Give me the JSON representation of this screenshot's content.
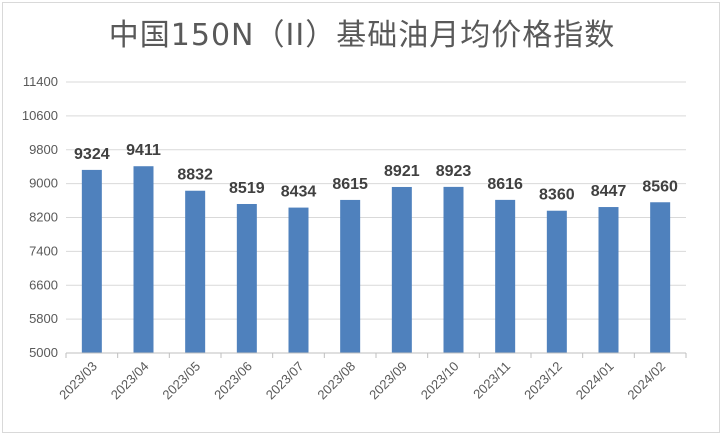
{
  "chart_data": {
    "type": "bar",
    "title": "中国150N（II）基础油月均价格指数",
    "categories": [
      "2023/03",
      "2023/04",
      "2023/05",
      "2023/06",
      "2023/07",
      "2023/08",
      "2023/09",
      "2023/10",
      "2023/11",
      "2023/12",
      "2024/01",
      "2024/02"
    ],
    "values": [
      9324,
      9411,
      8832,
      8519,
      8434,
      8615,
      8921,
      8923,
      8616,
      8360,
      8447,
      8560
    ],
    "yticks": [
      "5000",
      "5800",
      "6600",
      "7400",
      "8200",
      "9000",
      "9800",
      "10600",
      "11400"
    ],
    "ylim": [
      5000,
      11400
    ],
    "xlabel": "",
    "ylabel": "",
    "grid": true,
    "bar_color": "#4f81bd",
    "data_labels": true
  }
}
